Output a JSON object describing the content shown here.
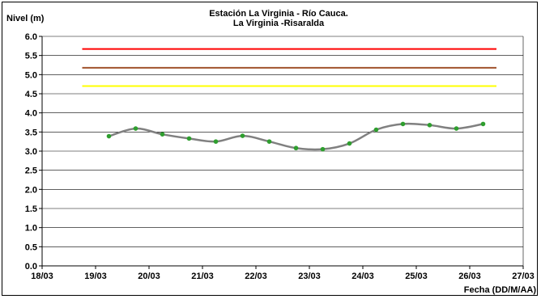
{
  "chart_data": {
    "type": "line",
    "title": "Estación La Virginia  - Río Cauca.",
    "subtitle": "La Virginia -Risaralda",
    "ylabel": "Nivel (m)",
    "xlabel": "Fecha (DD/M/AA)",
    "ylim": [
      0,
      6
    ],
    "y_ticks": [
      "0.0",
      "0.5",
      "1.0",
      "1.5",
      "2.0",
      "2.5",
      "3.0",
      "3.5",
      "4.0",
      "4.5",
      "5.0",
      "5.5",
      "6.0"
    ],
    "x_ticks": [
      "18/03",
      "19/03",
      "20/03",
      "21/03",
      "22/03",
      "23/03",
      "24/03",
      "25/03",
      "26/03",
      "27/03"
    ],
    "xlim_days": [
      0,
      9
    ],
    "grid": "horizontal",
    "thresholds": [
      {
        "value": 5.67,
        "color": "#ff0000"
      },
      {
        "value": 5.18,
        "color": "#a0522d"
      },
      {
        "value": 4.7,
        "color": "#ffff00"
      }
    ],
    "threshold_x_range": [
      0.75,
      8.5
    ],
    "series": [
      {
        "line_color": "#808080",
        "marker_color": "#2e9e2e",
        "x": [
          1.25,
          1.75,
          2.25,
          2.75,
          3.25,
          3.75,
          4.25,
          4.75,
          5.25,
          5.75,
          6.25,
          6.75,
          7.25,
          7.75,
          8.25
        ],
        "y": [
          3.39,
          3.59,
          3.44,
          3.33,
          3.25,
          3.4,
          3.25,
          3.08,
          3.05,
          3.2,
          3.56,
          3.71,
          3.68,
          3.59,
          3.71
        ]
      }
    ]
  }
}
